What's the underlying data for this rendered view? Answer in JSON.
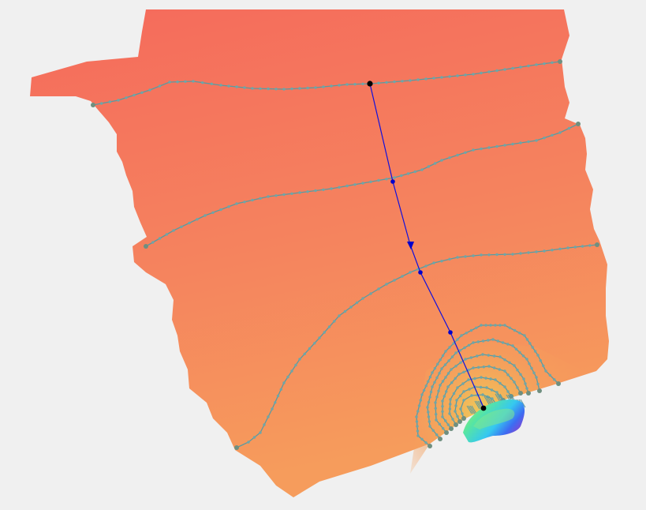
{
  "colors": {
    "background": "#f0f0f0",
    "terrain_high": "#f56c5c",
    "terrain_low": "#f7a15a",
    "contour_line": "#5b9aa0",
    "contour_dot": "#6ea6a8",
    "contour_end": "#6f8f80",
    "flowline": "#1010dd",
    "flow_marker": "#0000cc",
    "point_black": "#000000",
    "gradient_green": "#6ee87a",
    "gradient_cyan": "#38d9f0",
    "gradient_blue": "#3a55f0",
    "gradient_purple": "#7a48d8"
  },
  "scene": {
    "description_visible_text": "",
    "contour_count": 10,
    "flowline": {
      "has_direction_arrow": true,
      "start_point": "black-dot",
      "end_point": "black-dot"
    }
  }
}
